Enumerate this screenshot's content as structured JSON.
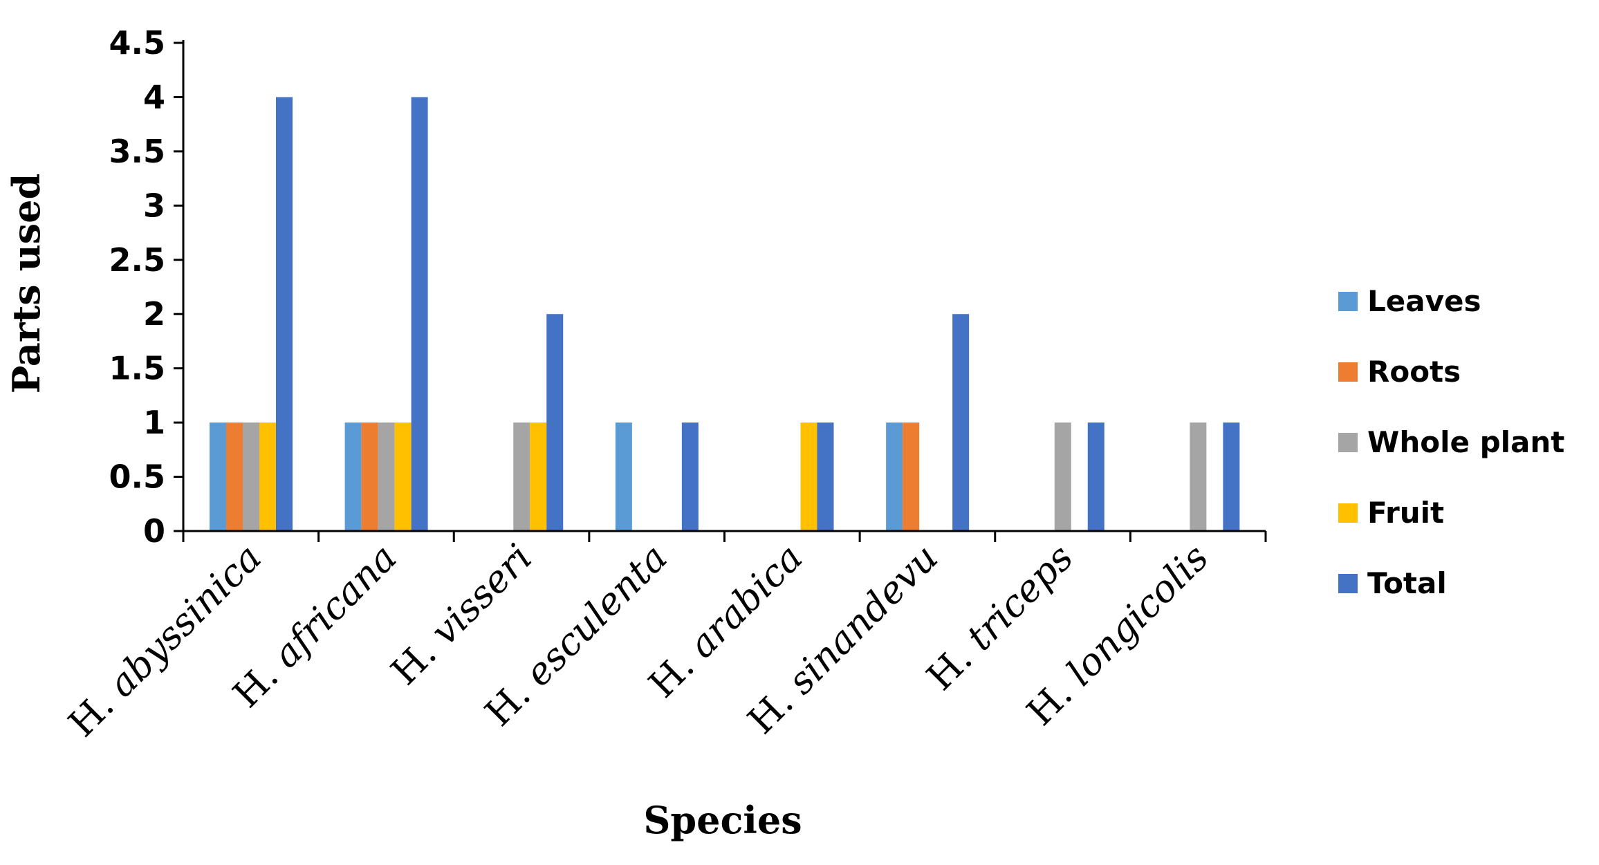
{
  "chart_data": {
    "type": "bar",
    "title": "",
    "xlabel": "Species",
    "ylabel": "Parts used",
    "ylim": [
      0,
      4.5
    ],
    "y_ticks": [
      "0",
      "0.5",
      "1",
      "1.5",
      "2",
      "2.5",
      "3",
      "3.5",
      "4",
      "4.5"
    ],
    "y_tick_values": [
      0,
      0.5,
      1,
      1.5,
      2,
      2.5,
      3,
      3.5,
      4,
      4.5
    ],
    "grid": false,
    "legend_position": "right",
    "categories": [
      {
        "prefix": "H. ",
        "name": "abyssinica"
      },
      {
        "prefix": "H. ",
        "name": "africana"
      },
      {
        "prefix": "H. ",
        "name": "visseri"
      },
      {
        "prefix": "H. ",
        "name": "esculenta"
      },
      {
        "prefix": "H. ",
        "name": "arabica"
      },
      {
        "prefix": "H. ",
        "name": "sinandevu"
      },
      {
        "prefix": "H. ",
        "name": "triceps"
      },
      {
        "prefix": "H. ",
        "name": "longicolis"
      }
    ],
    "series": [
      {
        "name": "Leaves",
        "color": "#5B9BD5",
        "values": [
          1,
          1,
          0,
          1,
          0,
          1,
          0,
          0
        ]
      },
      {
        "name": "Roots",
        "color": "#ED7D31",
        "values": [
          1,
          1,
          0,
          0,
          0,
          1,
          0,
          0
        ]
      },
      {
        "name": "Whole plant",
        "color": "#A5A5A5",
        "values": [
          1,
          1,
          1,
          0,
          0,
          0,
          1,
          1
        ]
      },
      {
        "name": "Fruit",
        "color": "#FFC000",
        "values": [
          1,
          1,
          1,
          0,
          1,
          0,
          0,
          0
        ]
      },
      {
        "name": "Total",
        "color": "#4472C4",
        "values": [
          4,
          4,
          2,
          1,
          1,
          2,
          1,
          1
        ]
      }
    ]
  }
}
